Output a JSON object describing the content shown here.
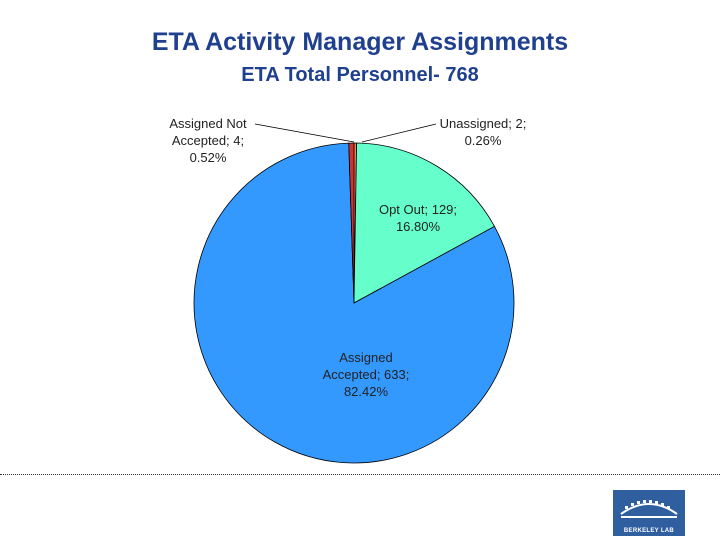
{
  "title": "ETA Activity Manager Assignments",
  "subtitle": "ETA Total Personnel- 768",
  "logo": {
    "text": "BERKELEY LAB"
  },
  "chart_data": {
    "type": "pie",
    "title": "ETA Activity Manager Assignments",
    "subtitle": "ETA Total Personnel- 768",
    "slices": [
      {
        "label_lines": [
          "Unassigned; 2;",
          "0.26%"
        ],
        "category": "Unassigned",
        "value": 2,
        "percent": 0.26,
        "color": "#ff7f50"
      },
      {
        "label_lines": [
          "Opt Out; 129;",
          "16.80%"
        ],
        "category": "Opt Out",
        "value": 129,
        "percent": 16.8,
        "color": "#66ffcc"
      },
      {
        "label_lines": [
          "Assigned",
          "Accepted; 633;",
          "82.42%"
        ],
        "category": "Assigned Accepted",
        "value": 633,
        "percent": 82.42,
        "color": "#3399ff"
      },
      {
        "label_lines": [
          "Assigned Not",
          "Accepted; 4;",
          "0.52%"
        ],
        "category": "Assigned Not Accepted",
        "value": 4,
        "percent": 0.52,
        "color": "#cc3333"
      }
    ]
  }
}
